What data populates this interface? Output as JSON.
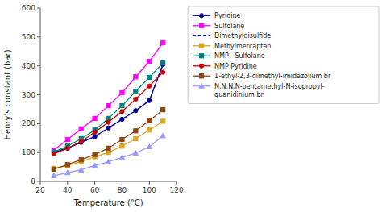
{
  "chart_data": {
    "type": "line",
    "x": [
      30,
      40,
      50,
      60,
      70,
      80,
      90,
      100,
      110
    ],
    "series": [
      {
        "name": "Pyridine",
        "color": "#00008B",
        "line_style": "solid",
        "marker": "circle",
        "values": [
          100,
          115,
          135,
          155,
          185,
          215,
          245,
          280,
          405
        ]
      },
      {
        "name": "Sulfolane",
        "color": "#FF00FF",
        "line_style": "solid",
        "marker": "square",
        "values": [
          108,
          145,
          182,
          218,
          262,
          307,
          362,
          415,
          480
        ]
      },
      {
        "name": "Dimethyldisulfide",
        "color": "#0000CD",
        "line_style": "dashed",
        "marker": "none",
        "values": [
          100,
          115,
          135,
          155,
          185,
          215,
          245,
          280,
          405
        ]
      },
      {
        "name": "Methylmercaptan",
        "color": "#DAA520",
        "line_style": "solid",
        "marker": "square",
        "values": [
          45,
          55,
          68,
          85,
          100,
          122,
          148,
          178,
          208
        ]
      },
      {
        "name": "NMP   Sulfolane",
        "color": "#008080",
        "line_style": "solid",
        "marker": "square",
        "values": [
          102,
          122,
          148,
          178,
          218,
          262,
          312,
          360,
          410
        ]
      },
      {
        "name": "NMP Pyridine",
        "color": "#CC0000",
        "line_style": "solid",
        "marker": "circle",
        "values": [
          95,
          115,
          138,
          170,
          205,
          242,
          285,
          330,
          378
        ]
      },
      {
        "name": "1-ethyl-2,3-dimethyl-imidazolium br",
        "color": "#8B4513",
        "line_style": "solid",
        "marker": "square",
        "values": [
          42,
          58,
          75,
          93,
          115,
          145,
          175,
          210,
          248
        ]
      },
      {
        "name": "N,N,N,N-pentamethyl-N-isopropyl-\nguanidinium br",
        "color": "#9999FF",
        "line_style": "solid",
        "marker": "triangle",
        "values": [
          20,
          30,
          40,
          55,
          68,
          83,
          98,
          120,
          158
        ]
      }
    ],
    "xlabel": "Temperature (°C)",
    "ylabel": "Henry's constant (bar)",
    "xlim": [
      20,
      120
    ],
    "ylim": [
      0,
      600
    ],
    "xticks": [
      20,
      40,
      60,
      80,
      100,
      120
    ],
    "yticks": [
      0,
      100,
      200,
      300,
      400,
      500,
      600
    ],
    "grid": false,
    "legend": "right"
  }
}
